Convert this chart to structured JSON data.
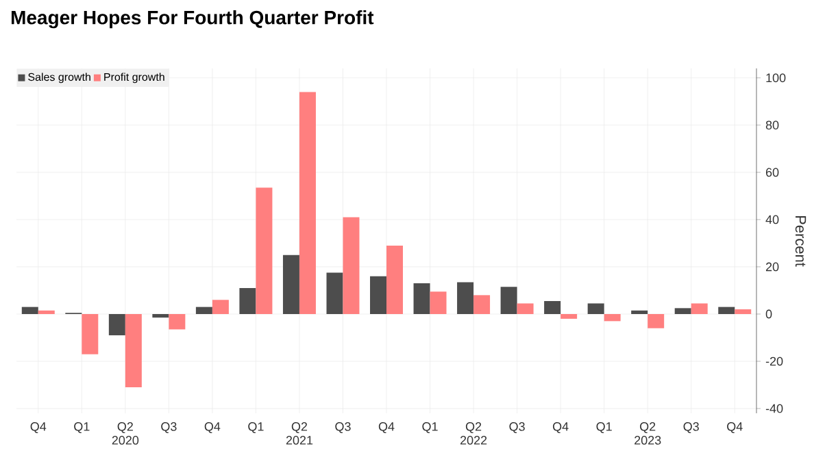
{
  "chart_data": {
    "type": "bar",
    "title": "Meager Hopes For Fourth Quarter Profit",
    "ylabel": "Percent",
    "categories": [
      "Q4",
      "Q1",
      "Q2 2020",
      "Q3",
      "Q4",
      "Q1",
      "Q2 2021",
      "Q3",
      "Q4",
      "Q1",
      "Q2 2022",
      "Q3",
      "Q4",
      "Q1",
      "Q2 2023",
      "Q3",
      "Q4"
    ],
    "series": [
      {
        "name": "Sales growth",
        "color": "#4d4d4d",
        "values": [
          3,
          0.5,
          -9,
          -1.5,
          3,
          11,
          25,
          17.5,
          16,
          13,
          13.5,
          11.5,
          5.5,
          4.5,
          1.5,
          2.5,
          3
        ]
      },
      {
        "name": "Profit growth",
        "color": "#ff7f7f",
        "values": [
          1.5,
          -17,
          -31,
          -6.5,
          6,
          53.5,
          94,
          41,
          29,
          9.5,
          8,
          4.5,
          -2,
          -3,
          -6,
          4.5,
          2
        ]
      }
    ],
    "ylim": [
      -42,
      104
    ],
    "yticks": [
      -40,
      -20,
      0,
      20,
      40,
      60,
      80,
      100
    ],
    "grid": true,
    "legend": "top left"
  }
}
